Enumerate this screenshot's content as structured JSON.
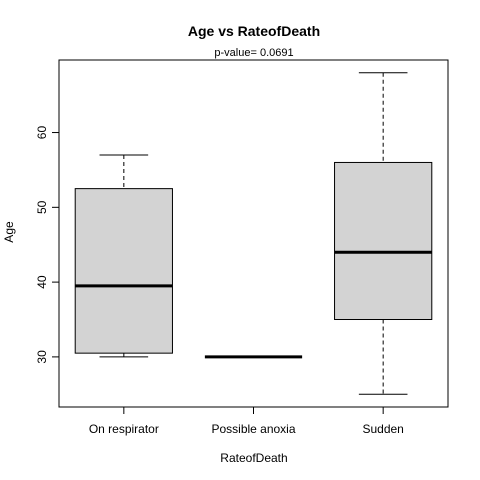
{
  "chart_data": {
    "type": "boxplot",
    "title": "Age  vs  RateofDeath",
    "subtitle": "p-value= 0.0691",
    "xlabel": "RateofDeath",
    "ylabel": "Age",
    "ylim": [
      23.3,
      69.7
    ],
    "yticks": [
      30,
      40,
      50,
      60
    ],
    "categories": [
      "On respirator",
      "Possible anoxia",
      "Sudden"
    ],
    "boxes": [
      {
        "category": "On respirator",
        "min": 30,
        "q1": 30.5,
        "median": 39.5,
        "q3": 52.5,
        "max": 57
      },
      {
        "category": "Possible anoxia",
        "min": 30,
        "q1": 30,
        "median": 30,
        "q3": 30,
        "max": 30
      },
      {
        "category": "Sudden",
        "min": 25,
        "q1": 35,
        "median": 44,
        "q3": 56,
        "max": 68
      }
    ],
    "box_color": "#d3d3d3",
    "line_color": "#000000"
  }
}
